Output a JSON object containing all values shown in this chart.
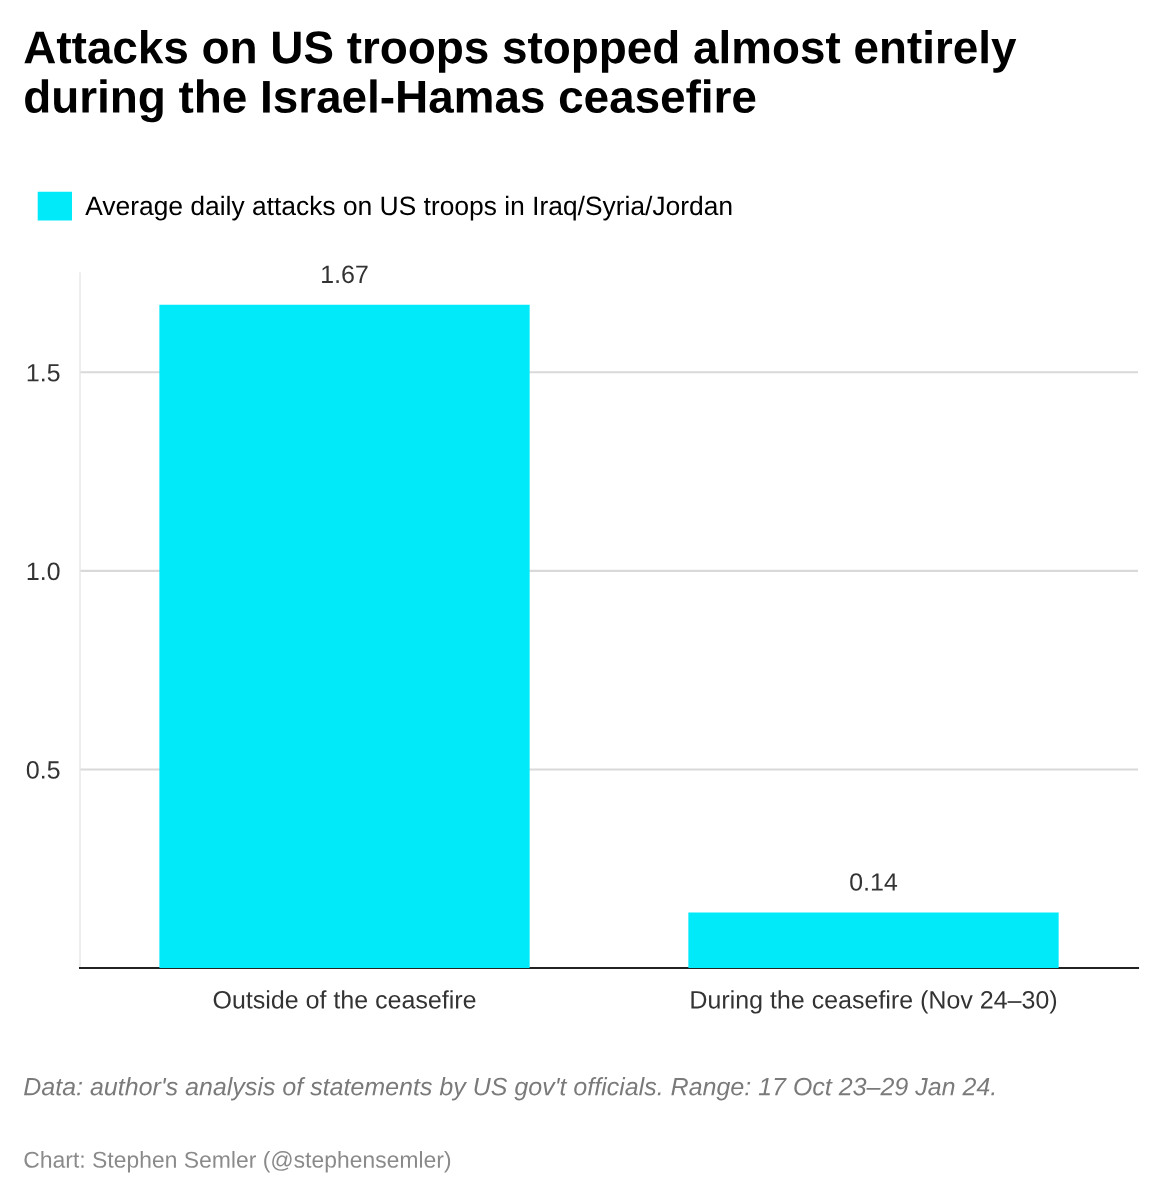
{
  "chart_data": {
    "type": "bar",
    "title": "Attacks on US troops stopped almost entirely during the Israel-Hamas ceasefire",
    "categories": [
      "Outside of the ceasefire",
      "During the ceasefire (Nov 24–30)"
    ],
    "series": [
      {
        "name": "Average daily attacks on US troops in Iraq/Syria/Jordan",
        "color": "#00eafa",
        "values": [
          1.67,
          0.14
        ]
      }
    ],
    "ylim": [
      0,
      1.75
    ],
    "yticks": [
      {
        "value": 0.5,
        "label": "0.5"
      },
      {
        "value": 1.0,
        "label": "1.0"
      },
      {
        "value": 1.5,
        "label": "1.5"
      }
    ],
    "grid": "y",
    "legend": "top left",
    "data_labels": true,
    "annotations": [
      "Data: author's analysis of statements by US gov't officials. Range: 17 Oct 23–29 Jan 24.",
      "Chart: Stephen Semler (@stephensemler)"
    ]
  }
}
